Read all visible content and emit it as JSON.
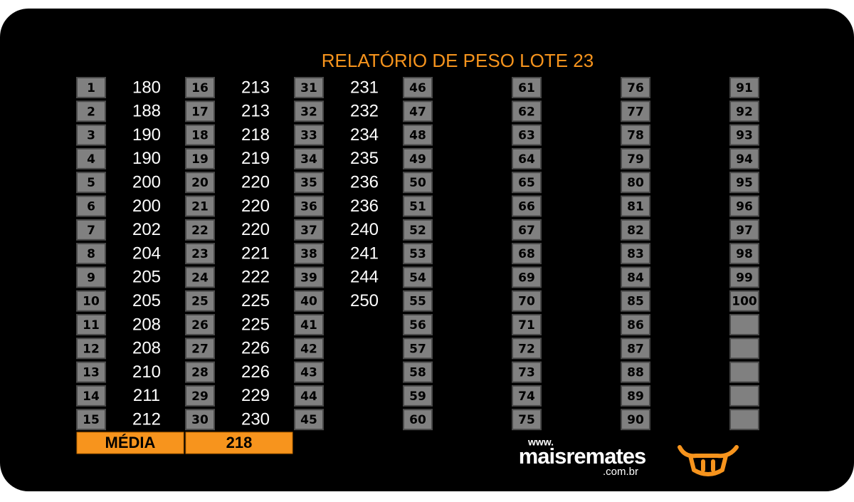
{
  "title": "RELATÓRIO DE PESO LOTE  23",
  "table": {
    "columns": [
      {
        "ids": [
          1,
          2,
          3,
          4,
          5,
          6,
          7,
          8,
          9,
          10,
          11,
          12,
          13,
          14,
          15
        ],
        "weights": [
          180,
          188,
          190,
          190,
          200,
          200,
          202,
          204,
          205,
          205,
          208,
          208,
          210,
          211,
          212
        ]
      },
      {
        "ids": [
          16,
          17,
          18,
          19,
          20,
          21,
          22,
          23,
          24,
          25,
          26,
          27,
          28,
          29,
          30
        ],
        "weights": [
          213,
          213,
          218,
          219,
          220,
          220,
          220,
          221,
          222,
          225,
          225,
          226,
          226,
          229,
          230
        ]
      },
      {
        "ids": [
          31,
          32,
          33,
          34,
          35,
          36,
          37,
          38,
          39,
          40,
          41,
          42,
          43,
          44,
          45
        ],
        "weights": [
          231,
          232,
          234,
          235,
          236,
          236,
          240,
          241,
          244,
          250
        ]
      },
      {
        "ids": [
          46,
          47,
          48,
          49,
          50,
          51,
          52,
          53,
          54,
          55,
          56,
          57,
          58,
          59,
          60
        ],
        "weights": []
      },
      {
        "ids": [
          61,
          62,
          63,
          64,
          65,
          66,
          67,
          68,
          69,
          70,
          71,
          72,
          73,
          74,
          75
        ],
        "weights": []
      },
      {
        "ids": [
          76,
          77,
          78,
          79,
          80,
          81,
          82,
          83,
          84,
          85,
          86,
          87,
          88,
          89,
          90
        ],
        "weights": []
      },
      {
        "ids": [
          91,
          92,
          93,
          94,
          95,
          96,
          97,
          98,
          99,
          100
        ],
        "weights": []
      }
    ]
  },
  "average": {
    "label": "MÉDIA",
    "value": 218
  },
  "logo": {
    "prefix": "www.",
    "name": "maisremates",
    "suffix": ".com.br"
  }
}
